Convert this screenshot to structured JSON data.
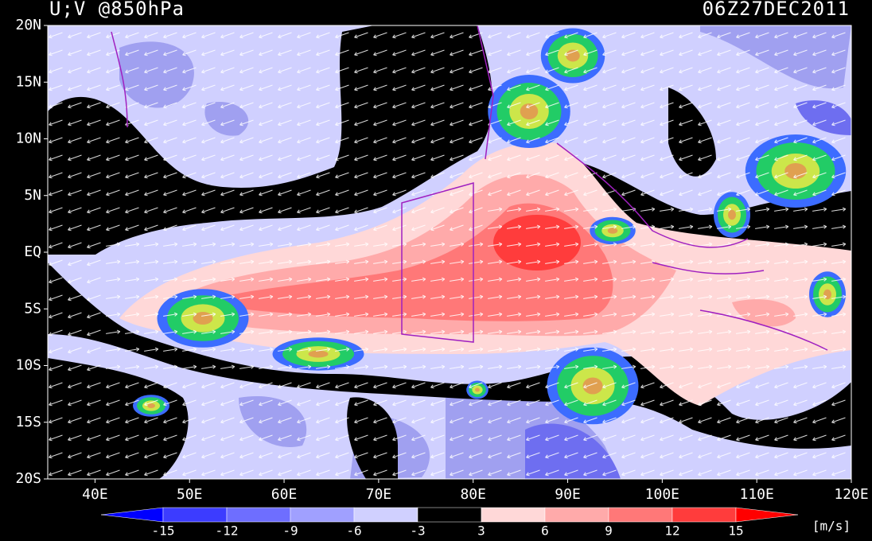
{
  "header": {
    "title": "U;V @850hPa",
    "date": "06Z27DEC2011"
  },
  "axes": {
    "lat_labels": [
      "20N",
      "15N",
      "10N",
      "5N",
      "EQ",
      "5S",
      "10S",
      "15S",
      "20S"
    ],
    "lon_labels": [
      "40E",
      "50E",
      "60E",
      "70E",
      "80E",
      "90E",
      "100E",
      "110E",
      "120E"
    ]
  },
  "colorbar": {
    "labels": [
      "-15",
      "-12",
      "-9",
      "-6",
      "-3",
      "3",
      "6",
      "9",
      "12",
      "15"
    ],
    "unit": "[m/s]",
    "colors": [
      "#0000ff",
      "#3c3cff",
      "#6e6eff",
      "#a0a0ff",
      "#d0d0ff",
      "#000000",
      "#ffd8d8",
      "#ffaaaa",
      "#ff7878",
      "#ff3c3c",
      "#ff0000"
    ]
  }
}
